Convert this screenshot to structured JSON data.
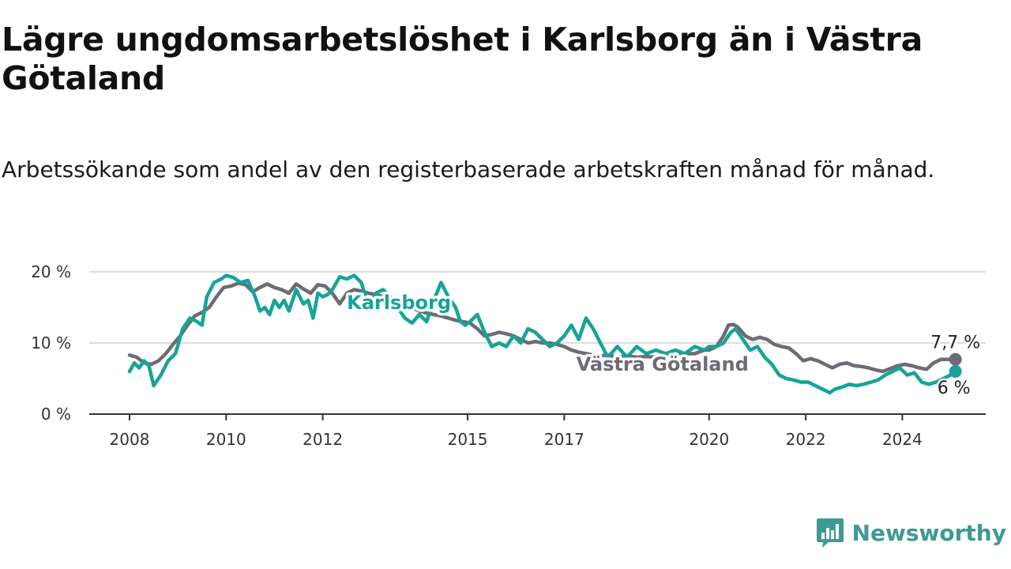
{
  "title": "Lägre ungdomsarbetslöshet i Karlsborg än i Västra Götaland",
  "subtitle": "Arbetssökande som andel av den registerbaserade arbetskraften månad för månad.",
  "brand": {
    "name": "Newsworthy"
  },
  "colors": {
    "karlsborg": "#17a398",
    "vastra_gotaland": "#6e6b74",
    "grid": "#dddddd",
    "axis": "#333333"
  },
  "chart_data": {
    "type": "line",
    "title": "Lägre ungdomsarbetslöshet i Karlsborg än i Västra Götaland",
    "ylim": [
      0,
      20
    ],
    "yticks": [
      {
        "value": 0,
        "label": "0 %"
      },
      {
        "value": 10,
        "label": "10 %"
      },
      {
        "value": 20,
        "label": "20 %"
      }
    ],
    "xlim": [
      2008,
      2025.2
    ],
    "xticks": [
      {
        "value": 2008,
        "label": "2008"
      },
      {
        "value": 2010,
        "label": "2010"
      },
      {
        "value": 2012,
        "label": "2012"
      },
      {
        "value": 2015,
        "label": "2015"
      },
      {
        "value": 2017,
        "label": "2017"
      },
      {
        "value": 2020,
        "label": "2020"
      },
      {
        "value": 2022,
        "label": "2022"
      },
      {
        "value": 2024,
        "label": "2024"
      }
    ],
    "grid": true,
    "series": [
      {
        "name": "Västra Götaland",
        "color": "#6e6b74",
        "end_label": "7,7 %",
        "points": [
          [
            2008.0,
            8.3
          ],
          [
            2008.15,
            8.0
          ],
          [
            2008.3,
            7.2
          ],
          [
            2008.45,
            7.0
          ],
          [
            2008.6,
            7.5
          ],
          [
            2008.75,
            8.5
          ],
          [
            2008.9,
            9.8
          ],
          [
            2009.05,
            11.0
          ],
          [
            2009.2,
            12.5
          ],
          [
            2009.35,
            13.8
          ],
          [
            2009.5,
            14.3
          ],
          [
            2009.65,
            15.0
          ],
          [
            2009.8,
            16.5
          ],
          [
            2009.95,
            17.8
          ],
          [
            2010.1,
            18.0
          ],
          [
            2010.25,
            18.4
          ],
          [
            2010.4,
            18.2
          ],
          [
            2010.55,
            17.2
          ],
          [
            2010.7,
            17.8
          ],
          [
            2010.85,
            18.3
          ],
          [
            2011.0,
            17.8
          ],
          [
            2011.15,
            17.5
          ],
          [
            2011.3,
            17.0
          ],
          [
            2011.45,
            18.3
          ],
          [
            2011.6,
            17.6
          ],
          [
            2011.75,
            17.0
          ],
          [
            2011.9,
            18.2
          ],
          [
            2012.05,
            18.0
          ],
          [
            2012.2,
            17.0
          ],
          [
            2012.35,
            15.5
          ],
          [
            2012.5,
            17.0
          ],
          [
            2012.65,
            17.5
          ],
          [
            2012.8,
            17.3
          ],
          [
            2012.95,
            17.0
          ],
          [
            2013.1,
            16.8
          ],
          [
            2013.25,
            16.5
          ],
          [
            2013.4,
            16.0
          ],
          [
            2013.55,
            16.2
          ],
          [
            2013.7,
            15.5
          ],
          [
            2013.85,
            15.0
          ],
          [
            2014.0,
            14.5
          ],
          [
            2014.15,
            14.2
          ],
          [
            2014.3,
            14.0
          ],
          [
            2014.45,
            13.8
          ],
          [
            2014.6,
            13.5
          ],
          [
            2014.75,
            13.2
          ],
          [
            2014.9,
            13.0
          ],
          [
            2015.05,
            12.8
          ],
          [
            2015.2,
            12.0
          ],
          [
            2015.35,
            11.0
          ],
          [
            2015.5,
            11.2
          ],
          [
            2015.65,
            11.5
          ],
          [
            2015.8,
            11.3
          ],
          [
            2015.95,
            11.0
          ],
          [
            2016.1,
            10.5
          ],
          [
            2016.25,
            10.0
          ],
          [
            2016.4,
            10.2
          ],
          [
            2016.55,
            10.0
          ],
          [
            2016.7,
            10.0
          ],
          [
            2016.85,
            9.8
          ],
          [
            2017.0,
            9.5
          ],
          [
            2017.15,
            9.0
          ],
          [
            2017.3,
            8.7
          ],
          [
            2017.45,
            8.5
          ],
          [
            2017.6,
            8.3
          ],
          [
            2017.75,
            8.2
          ],
          [
            2017.9,
            8.3
          ],
          [
            2018.1,
            8.0
          ],
          [
            2018.3,
            8.2
          ],
          [
            2018.5,
            8.0
          ],
          [
            2018.7,
            8.1
          ],
          [
            2018.9,
            8.0
          ],
          [
            2019.1,
            8.1
          ],
          [
            2019.3,
            8.2
          ],
          [
            2019.5,
            8.5
          ],
          [
            2019.7,
            8.5
          ],
          [
            2019.9,
            9.0
          ],
          [
            2020.0,
            9.0
          ],
          [
            2020.15,
            9.5
          ],
          [
            2020.3,
            11.0
          ],
          [
            2020.4,
            12.5
          ],
          [
            2020.5,
            12.6
          ],
          [
            2020.6,
            12.2
          ],
          [
            2020.75,
            11.0
          ],
          [
            2020.9,
            10.5
          ],
          [
            2021.05,
            10.8
          ],
          [
            2021.2,
            10.5
          ],
          [
            2021.35,
            9.8
          ],
          [
            2021.5,
            9.5
          ],
          [
            2021.65,
            9.3
          ],
          [
            2021.8,
            8.5
          ],
          [
            2021.95,
            7.5
          ],
          [
            2022.1,
            7.8
          ],
          [
            2022.25,
            7.5
          ],
          [
            2022.4,
            7.0
          ],
          [
            2022.55,
            6.5
          ],
          [
            2022.7,
            7.0
          ],
          [
            2022.85,
            7.2
          ],
          [
            2023.0,
            6.8
          ],
          [
            2023.15,
            6.7
          ],
          [
            2023.3,
            6.5
          ],
          [
            2023.45,
            6.2
          ],
          [
            2023.6,
            6.0
          ],
          [
            2023.75,
            6.4
          ],
          [
            2023.9,
            6.8
          ],
          [
            2024.05,
            7.0
          ],
          [
            2024.2,
            6.8
          ],
          [
            2024.35,
            6.5
          ],
          [
            2024.5,
            6.3
          ],
          [
            2024.65,
            7.2
          ],
          [
            2024.8,
            7.7
          ],
          [
            2024.95,
            7.7
          ],
          [
            2025.1,
            7.7
          ]
        ]
      },
      {
        "name": "Karlsborg",
        "color": "#17a398",
        "end_label": "6 %",
        "points": [
          [
            2008.0,
            6.0
          ],
          [
            2008.1,
            7.2
          ],
          [
            2008.2,
            6.5
          ],
          [
            2008.3,
            7.5
          ],
          [
            2008.4,
            6.8
          ],
          [
            2008.5,
            4.0
          ],
          [
            2008.65,
            5.5
          ],
          [
            2008.8,
            7.5
          ],
          [
            2008.95,
            8.5
          ],
          [
            2009.1,
            12.0
          ],
          [
            2009.25,
            13.5
          ],
          [
            2009.4,
            13.0
          ],
          [
            2009.5,
            12.5
          ],
          [
            2009.6,
            16.5
          ],
          [
            2009.75,
            18.5
          ],
          [
            2009.9,
            19.0
          ],
          [
            2010.0,
            19.5
          ],
          [
            2010.15,
            19.2
          ],
          [
            2010.3,
            18.5
          ],
          [
            2010.45,
            18.8
          ],
          [
            2010.6,
            16.5
          ],
          [
            2010.7,
            14.5
          ],
          [
            2010.8,
            15.0
          ],
          [
            2010.9,
            14.0
          ],
          [
            2011.0,
            16.0
          ],
          [
            2011.1,
            15.0
          ],
          [
            2011.2,
            16.0
          ],
          [
            2011.3,
            14.5
          ],
          [
            2011.45,
            17.5
          ],
          [
            2011.6,
            15.5
          ],
          [
            2011.7,
            16.0
          ],
          [
            2011.8,
            13.5
          ],
          [
            2011.9,
            17.0
          ],
          [
            2012.0,
            16.5
          ],
          [
            2012.1,
            16.8
          ],
          [
            2012.2,
            17.5
          ],
          [
            2012.35,
            19.3
          ],
          [
            2012.5,
            19.0
          ],
          [
            2012.65,
            19.5
          ],
          [
            2012.8,
            18.5
          ],
          [
            2012.95,
            15.0
          ],
          [
            2013.1,
            17.0
          ],
          [
            2013.25,
            17.5
          ],
          [
            2013.4,
            16.5
          ],
          [
            2013.55,
            15.0
          ],
          [
            2013.7,
            13.5
          ],
          [
            2013.85,
            12.8
          ],
          [
            2014.0,
            14.0
          ],
          [
            2014.15,
            13.0
          ],
          [
            2014.3,
            16.0
          ],
          [
            2014.45,
            18.5
          ],
          [
            2014.6,
            16.5
          ],
          [
            2014.75,
            15.0
          ],
          [
            2014.85,
            13.0
          ],
          [
            2014.95,
            12.5
          ],
          [
            2015.05,
            13.0
          ],
          [
            2015.2,
            14.0
          ],
          [
            2015.35,
            11.5
          ],
          [
            2015.5,
            9.5
          ],
          [
            2015.65,
            10.0
          ],
          [
            2015.8,
            9.5
          ],
          [
            2015.95,
            11.0
          ],
          [
            2016.1,
            10.0
          ],
          [
            2016.25,
            12.0
          ],
          [
            2016.4,
            11.5
          ],
          [
            2016.55,
            10.5
          ],
          [
            2016.7,
            9.5
          ],
          [
            2016.85,
            10.0
          ],
          [
            2017.0,
            11.0
          ],
          [
            2017.15,
            12.5
          ],
          [
            2017.3,
            10.5
          ],
          [
            2017.45,
            13.5
          ],
          [
            2017.6,
            12.0
          ],
          [
            2017.75,
            10.0
          ],
          [
            2017.9,
            8.0
          ],
          [
            2018.1,
            9.5
          ],
          [
            2018.3,
            8.0
          ],
          [
            2018.5,
            9.5
          ],
          [
            2018.7,
            8.5
          ],
          [
            2018.9,
            9.0
          ],
          [
            2019.1,
            8.5
          ],
          [
            2019.3,
            9.0
          ],
          [
            2019.5,
            8.5
          ],
          [
            2019.7,
            9.5
          ],
          [
            2019.9,
            9.0
          ],
          [
            2020.0,
            9.5
          ],
          [
            2020.15,
            9.5
          ],
          [
            2020.3,
            10.0
          ],
          [
            2020.45,
            11.5
          ],
          [
            2020.55,
            12.0
          ],
          [
            2020.7,
            10.5
          ],
          [
            2020.85,
            9.0
          ],
          [
            2021.0,
            9.5
          ],
          [
            2021.15,
            8.0
          ],
          [
            2021.3,
            7.0
          ],
          [
            2021.45,
            5.5
          ],
          [
            2021.6,
            5.0
          ],
          [
            2021.75,
            4.8
          ],
          [
            2021.9,
            4.5
          ],
          [
            2022.05,
            4.5
          ],
          [
            2022.2,
            4.0
          ],
          [
            2022.35,
            3.5
          ],
          [
            2022.5,
            3.0
          ],
          [
            2022.6,
            3.5
          ],
          [
            2022.75,
            3.8
          ],
          [
            2022.9,
            4.2
          ],
          [
            2023.05,
            4.0
          ],
          [
            2023.2,
            4.2
          ],
          [
            2023.35,
            4.5
          ],
          [
            2023.5,
            4.8
          ],
          [
            2023.65,
            5.5
          ],
          [
            2023.8,
            6.0
          ],
          [
            2023.95,
            6.5
          ],
          [
            2024.1,
            5.5
          ],
          [
            2024.25,
            5.8
          ],
          [
            2024.4,
            4.5
          ],
          [
            2024.55,
            4.2
          ],
          [
            2024.7,
            4.5
          ],
          [
            2024.85,
            5.0
          ],
          [
            2025.0,
            5.5
          ],
          [
            2025.1,
            6.0
          ]
        ]
      }
    ],
    "series_labels": [
      {
        "series": "Karlsborg",
        "text": "Karlsborg",
        "x": 2012.5,
        "y": 14.8
      },
      {
        "series": "Västra Götaland",
        "text": "Västra Götaland",
        "x": 2017.25,
        "y": 6.1
      }
    ]
  }
}
